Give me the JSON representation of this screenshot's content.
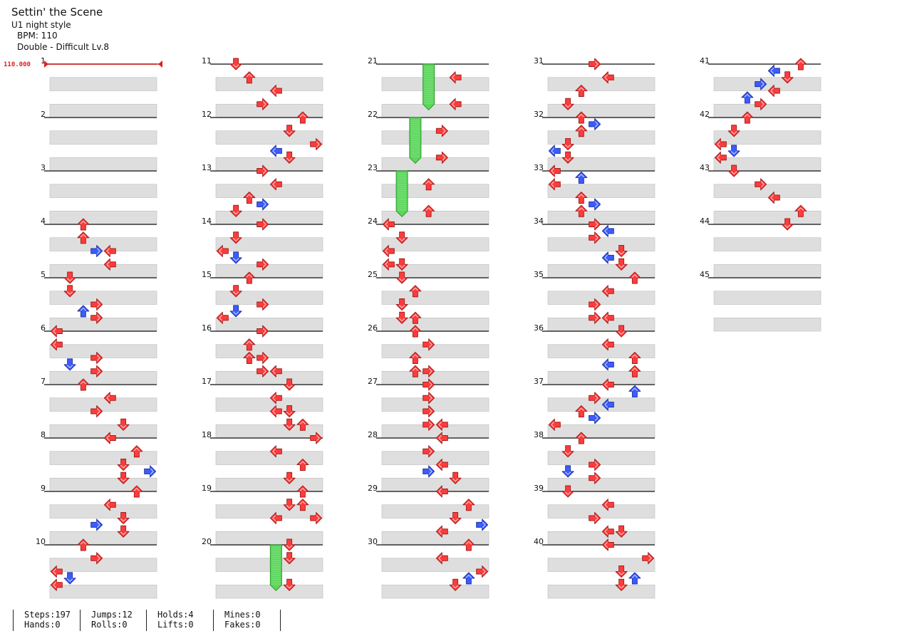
{
  "song": {
    "title": "Settin' the Scene",
    "artist": "U1 night style",
    "bpm_text": "BPM: 110",
    "difficulty_text": "Double - Difficult Lv.8"
  },
  "bpm_change_label": "110.000",
  "colors": {
    "red_arrow": "#ff3b3b",
    "blue_arrow": "#3b5cff",
    "hold_green": "#5cd65c",
    "bpm_marker": "#e02020"
  },
  "measure_numbers": [
    "1",
    "2",
    "3",
    "4",
    "5",
    "6",
    "7",
    "8",
    "9",
    "10",
    "11",
    "12",
    "13",
    "14",
    "15",
    "16",
    "17",
    "18",
    "19",
    "20",
    "21",
    "22",
    "23",
    "24",
    "25",
    "26",
    "27",
    "28",
    "29",
    "30",
    "31",
    "32",
    "33",
    "34",
    "35",
    "36",
    "37",
    "38",
    "39",
    "40",
    "41",
    "42",
    "43",
    "44",
    "45"
  ],
  "notes": [
    {
      "m": 4,
      "r": 0,
      "c": 2,
      "d": "up",
      "col": "red"
    },
    {
      "m": 4,
      "r": 1,
      "c": 2,
      "d": "up",
      "col": "red"
    },
    {
      "m": 4,
      "r": 2,
      "c": 4,
      "d": "left",
      "col": "red"
    },
    {
      "m": 4,
      "r": 2,
      "c": 3,
      "d": "right",
      "col": "blue"
    },
    {
      "m": 4,
      "r": 3,
      "c": 4,
      "d": "left",
      "col": "red"
    },
    {
      "m": 5,
      "r": 0,
      "c": 1,
      "d": "down",
      "col": "red"
    },
    {
      "m": 5,
      "r": 1,
      "c": 1,
      "d": "down",
      "col": "red"
    },
    {
      "m": 5,
      "r": 2,
      "c": 3,
      "d": "right",
      "col": "red"
    },
    {
      "m": 5,
      "r": 2.5,
      "c": 2,
      "d": "up",
      "col": "blue"
    },
    {
      "m": 5,
      "r": 3,
      "c": 3,
      "d": "right",
      "col": "red"
    },
    {
      "m": 6,
      "r": 0,
      "c": 0,
      "d": "left",
      "col": "red"
    },
    {
      "m": 6,
      "r": 1,
      "c": 0,
      "d": "left",
      "col": "red"
    },
    {
      "m": 6,
      "r": 2,
      "c": 3,
      "d": "right",
      "col": "red"
    },
    {
      "m": 6,
      "r": 2.5,
      "c": 1,
      "d": "down",
      "col": "blue"
    },
    {
      "m": 6,
      "r": 3,
      "c": 3,
      "d": "right",
      "col": "red"
    },
    {
      "m": 7,
      "r": 0,
      "c": 2,
      "d": "up",
      "col": "red"
    },
    {
      "m": 7,
      "r": 1,
      "c": 4,
      "d": "left",
      "col": "red"
    },
    {
      "m": 7,
      "r": 2,
      "c": 3,
      "d": "right",
      "col": "red"
    },
    {
      "m": 7,
      "r": 3,
      "c": 5,
      "d": "down",
      "col": "red"
    },
    {
      "m": 8,
      "r": 0,
      "c": 4,
      "d": "left",
      "col": "red"
    },
    {
      "m": 8,
      "r": 1,
      "c": 6,
      "d": "up",
      "col": "red"
    },
    {
      "m": 8,
      "r": 2,
      "c": 5,
      "d": "down",
      "col": "red"
    },
    {
      "m": 8,
      "r": 2.5,
      "c": 7,
      "d": "right",
      "col": "blue"
    },
    {
      "m": 8,
      "r": 3,
      "c": 5,
      "d": "down",
      "col": "red"
    },
    {
      "m": 9,
      "r": 0,
      "c": 6,
      "d": "up",
      "col": "red"
    },
    {
      "m": 9,
      "r": 1,
      "c": 4,
      "d": "left",
      "col": "red"
    },
    {
      "m": 9,
      "r": 2,
      "c": 5,
      "d": "down",
      "col": "red"
    },
    {
      "m": 9,
      "r": 2.5,
      "c": 3,
      "d": "right",
      "col": "blue"
    },
    {
      "m": 9,
      "r": 3,
      "c": 5,
      "d": "down",
      "col": "red"
    },
    {
      "m": 10,
      "r": 0,
      "c": 2,
      "d": "up",
      "col": "red"
    },
    {
      "m": 10,
      "r": 1,
      "c": 3,
      "d": "right",
      "col": "red"
    },
    {
      "m": 10,
      "r": 2,
      "c": 0,
      "d": "left",
      "col": "red"
    },
    {
      "m": 10,
      "r": 2.5,
      "c": 1,
      "d": "down",
      "col": "blue"
    },
    {
      "m": 10,
      "r": 3,
      "c": 0,
      "d": "left",
      "col": "red"
    },
    {
      "m": 11,
      "r": 0,
      "c": 1,
      "d": "down",
      "col": "red"
    },
    {
      "m": 11,
      "r": 1,
      "c": 2,
      "d": "up",
      "col": "red"
    },
    {
      "m": 11,
      "r": 2,
      "c": 4,
      "d": "left",
      "col": "red"
    },
    {
      "m": 11,
      "r": 3,
      "c": 3,
      "d": "right",
      "col": "red"
    },
    {
      "m": 12,
      "r": 0,
      "c": 6,
      "d": "up",
      "col": "red"
    },
    {
      "m": 12,
      "r": 1,
      "c": 5,
      "d": "down",
      "col": "red"
    },
    {
      "m": 12,
      "r": 2,
      "c": 7,
      "d": "right",
      "col": "red"
    },
    {
      "m": 12,
      "r": 2.5,
      "c": 4,
      "d": "left",
      "col": "blue"
    },
    {
      "m": 12,
      "r": 3,
      "c": 5,
      "d": "down",
      "col": "red"
    },
    {
      "m": 13,
      "r": 0,
      "c": 3,
      "d": "right",
      "col": "red"
    },
    {
      "m": 13,
      "r": 1,
      "c": 4,
      "d": "left",
      "col": "red"
    },
    {
      "m": 13,
      "r": 2,
      "c": 2,
      "d": "up",
      "col": "red"
    },
    {
      "m": 13,
      "r": 2.5,
      "c": 3,
      "d": "right",
      "col": "blue"
    },
    {
      "m": 13,
      "r": 3,
      "c": 1,
      "d": "down",
      "col": "red"
    },
    {
      "m": 14,
      "r": 0,
      "c": 3,
      "d": "right",
      "col": "red"
    },
    {
      "m": 14,
      "r": 1,
      "c": 1,
      "d": "down",
      "col": "red"
    },
    {
      "m": 14,
      "r": 2,
      "c": 0,
      "d": "left",
      "col": "red"
    },
    {
      "m": 14,
      "r": 2.5,
      "c": 1,
      "d": "down",
      "col": "blue"
    },
    {
      "m": 14,
      "r": 3,
      "c": 3,
      "d": "right",
      "col": "red"
    },
    {
      "m": 15,
      "r": 0,
      "c": 2,
      "d": "up",
      "col": "red"
    },
    {
      "m": 15,
      "r": 1,
      "c": 1,
      "d": "down",
      "col": "red"
    },
    {
      "m": 15,
      "r": 2,
      "c": 3,
      "d": "right",
      "col": "red"
    },
    {
      "m": 15,
      "r": 2.5,
      "c": 1,
      "d": "down",
      "col": "blue"
    },
    {
      "m": 15,
      "r": 3,
      "c": 0,
      "d": "left",
      "col": "red"
    },
    {
      "m": 16,
      "r": 0,
      "c": 3,
      "d": "right",
      "col": "red"
    },
    {
      "m": 16,
      "r": 1,
      "c": 2,
      "d": "up",
      "col": "red"
    },
    {
      "m": 16,
      "r": 2,
      "c": 2,
      "d": "up",
      "col": "red"
    },
    {
      "m": 16,
      "r": 2,
      "c": 3,
      "d": "right",
      "col": "red"
    },
    {
      "m": 16,
      "r": 3,
      "c": 3,
      "d": "right",
      "col": "red"
    },
    {
      "m": 16,
      "r": 3,
      "c": 4,
      "d": "left",
      "col": "red"
    },
    {
      "m": 17,
      "r": 0,
      "c": 5,
      "d": "down",
      "col": "red"
    },
    {
      "m": 17,
      "r": 1,
      "c": 4,
      "d": "left",
      "col": "red"
    },
    {
      "m": 17,
      "r": 2,
      "c": 4,
      "d": "left",
      "col": "red"
    },
    {
      "m": 17,
      "r": 2,
      "c": 5,
      "d": "down",
      "col": "red"
    },
    {
      "m": 17,
      "r": 3,
      "c": 5,
      "d": "down",
      "col": "red"
    },
    {
      "m": 17,
      "r": 3,
      "c": 6,
      "d": "up",
      "col": "red"
    },
    {
      "m": 18,
      "r": 0,
      "c": 7,
      "d": "right",
      "col": "red"
    },
    {
      "m": 18,
      "r": 1,
      "c": 4,
      "d": "left",
      "col": "red"
    },
    {
      "m": 18,
      "r": 2,
      "c": 6,
      "d": "up",
      "col": "red"
    },
    {
      "m": 18,
      "r": 3,
      "c": 5,
      "d": "down",
      "col": "red"
    },
    {
      "m": 19,
      "r": 0,
      "c": 6,
      "d": "up",
      "col": "red"
    },
    {
      "m": 19,
      "r": 1,
      "c": 5,
      "d": "down",
      "col": "red"
    },
    {
      "m": 19,
      "r": 1,
      "c": 6,
      "d": "up",
      "col": "red"
    },
    {
      "m": 19,
      "r": 2,
      "c": 4,
      "d": "left",
      "col": "red"
    },
    {
      "m": 19,
      "r": 2,
      "c": 7,
      "d": "right",
      "col": "red"
    },
    {
      "m": 20,
      "r": 0,
      "c": 5,
      "d": "down",
      "col": "red"
    },
    {
      "m": 20,
      "r": 1,
      "c": 5,
      "d": "down",
      "col": "red"
    },
    {
      "m": 20,
      "r": 3,
      "c": 5,
      "d": "down",
      "col": "red"
    },
    {
      "m": 21,
      "r": 1,
      "c": 5,
      "d": "left",
      "col": "red"
    },
    {
      "m": 21,
      "r": 3,
      "c": 5,
      "d": "left",
      "col": "red"
    },
    {
      "m": 22,
      "r": 1,
      "c": 4,
      "d": "right",
      "col": "red"
    },
    {
      "m": 22,
      "r": 3,
      "c": 4,
      "d": "right",
      "col": "red"
    },
    {
      "m": 23,
      "r": 1,
      "c": 3,
      "d": "up",
      "col": "red"
    },
    {
      "m": 23,
      "r": 3,
      "c": 3,
      "d": "up",
      "col": "red"
    },
    {
      "m": 24,
      "r": 0,
      "c": 0,
      "d": "left",
      "col": "red"
    },
    {
      "m": 24,
      "r": 1,
      "c": 1,
      "d": "down",
      "col": "red"
    },
    {
      "m": 24,
      "r": 2,
      "c": 0,
      "d": "left",
      "col": "red"
    },
    {
      "m": 24,
      "r": 3,
      "c": 0,
      "d": "left",
      "col": "red"
    },
    {
      "m": 24,
      "r": 3,
      "c": 1,
      "d": "down",
      "col": "red"
    },
    {
      "m": 25,
      "r": 0,
      "c": 1,
      "d": "down",
      "col": "red"
    },
    {
      "m": 25,
      "r": 1,
      "c": 2,
      "d": "up",
      "col": "red"
    },
    {
      "m": 25,
      "r": 2,
      "c": 1,
      "d": "down",
      "col": "red"
    },
    {
      "m": 25,
      "r": 3,
      "c": 1,
      "d": "down",
      "col": "red"
    },
    {
      "m": 25,
      "r": 3,
      "c": 2,
      "d": "up",
      "col": "red"
    },
    {
      "m": 26,
      "r": 0,
      "c": 2,
      "d": "up",
      "col": "red"
    },
    {
      "m": 26,
      "r": 1,
      "c": 3,
      "d": "right",
      "col": "red"
    },
    {
      "m": 26,
      "r": 2,
      "c": 2,
      "d": "up",
      "col": "red"
    },
    {
      "m": 26,
      "r": 3,
      "c": 2,
      "d": "up",
      "col": "red"
    },
    {
      "m": 26,
      "r": 3,
      "c": 3,
      "d": "right",
      "col": "red"
    },
    {
      "m": 27,
      "r": 0,
      "c": 3,
      "d": "right",
      "col": "red"
    },
    {
      "m": 27,
      "r": 1,
      "c": 3,
      "d": "right",
      "col": "red"
    },
    {
      "m": 27,
      "r": 2,
      "c": 3,
      "d": "right",
      "col": "red"
    },
    {
      "m": 27,
      "r": 3,
      "c": 3,
      "d": "right",
      "col": "red"
    },
    {
      "m": 27,
      "r": 3,
      "c": 4,
      "d": "left",
      "col": "red"
    },
    {
      "m": 28,
      "r": 0,
      "c": 4,
      "d": "left",
      "col": "red"
    },
    {
      "m": 28,
      "r": 1,
      "c": 3,
      "d": "right",
      "col": "red"
    },
    {
      "m": 28,
      "r": 2,
      "c": 4,
      "d": "left",
      "col": "red"
    },
    {
      "m": 28,
      "r": 2.5,
      "c": 3,
      "d": "right",
      "col": "blue"
    },
    {
      "m": 28,
      "r": 3,
      "c": 5,
      "d": "down",
      "col": "red"
    },
    {
      "m": 29,
      "r": 0,
      "c": 4,
      "d": "left",
      "col": "red"
    },
    {
      "m": 29,
      "r": 1,
      "c": 6,
      "d": "up",
      "col": "red"
    },
    {
      "m": 29,
      "r": 2,
      "c": 5,
      "d": "down",
      "col": "red"
    },
    {
      "m": 29,
      "r": 2.5,
      "c": 7,
      "d": "right",
      "col": "blue"
    },
    {
      "m": 29,
      "r": 3,
      "c": 4,
      "d": "left",
      "col": "red"
    },
    {
      "m": 30,
      "r": 0,
      "c": 6,
      "d": "up",
      "col": "red"
    },
    {
      "m": 30,
      "r": 1,
      "c": 4,
      "d": "left",
      "col": "red"
    },
    {
      "m": 30,
      "r": 2,
      "c": 7,
      "d": "right",
      "col": "red"
    },
    {
      "m": 30,
      "r": 2.5,
      "c": 6,
      "d": "up",
      "col": "blue"
    },
    {
      "m": 30,
      "r": 3,
      "c": 5,
      "d": "down",
      "col": "red"
    },
    {
      "m": 31,
      "r": 0,
      "c": 3,
      "d": "right",
      "col": "red"
    },
    {
      "m": 31,
      "r": 1,
      "c": 4,
      "d": "left",
      "col": "red"
    },
    {
      "m": 31,
      "r": 2,
      "c": 2,
      "d": "up",
      "col": "red"
    },
    {
      "m": 31,
      "r": 3,
      "c": 1,
      "d": "down",
      "col": "red"
    },
    {
      "m": 32,
      "r": 0,
      "c": 2,
      "d": "up",
      "col": "red"
    },
    {
      "m": 32,
      "r": 0.5,
      "c": 3,
      "d": "right",
      "col": "blue"
    },
    {
      "m": 32,
      "r": 1,
      "c": 2,
      "d": "up",
      "col": "red"
    },
    {
      "m": 32,
      "r": 2,
      "c": 1,
      "d": "down",
      "col": "red"
    },
    {
      "m": 32,
      "r": 2.5,
      "c": 0,
      "d": "left",
      "col": "blue"
    },
    {
      "m": 32,
      "r": 3,
      "c": 1,
      "d": "down",
      "col": "red"
    },
    {
      "m": 33,
      "r": 0,
      "c": 0,
      "d": "left",
      "col": "red"
    },
    {
      "m": 33,
      "r": 0.5,
      "c": 2,
      "d": "up",
      "col": "blue"
    },
    {
      "m": 33,
      "r": 1,
      "c": 0,
      "d": "left",
      "col": "red"
    },
    {
      "m": 33,
      "r": 2,
      "c": 2,
      "d": "up",
      "col": "red"
    },
    {
      "m": 33,
      "r": 2.5,
      "c": 3,
      "d": "right",
      "col": "blue"
    },
    {
      "m": 33,
      "r": 3,
      "c": 2,
      "d": "up",
      "col": "red"
    },
    {
      "m": 34,
      "r": 0,
      "c": 3,
      "d": "right",
      "col": "red"
    },
    {
      "m": 34,
      "r": 0.5,
      "c": 4,
      "d": "left",
      "col": "blue"
    },
    {
      "m": 34,
      "r": 1,
      "c": 3,
      "d": "right",
      "col": "red"
    },
    {
      "m": 34,
      "r": 2,
      "c": 5,
      "d": "down",
      "col": "red"
    },
    {
      "m": 34,
      "r": 2.5,
      "c": 4,
      "d": "left",
      "col": "blue"
    },
    {
      "m": 34,
      "r": 3,
      "c": 5,
      "d": "down",
      "col": "red"
    },
    {
      "m": 35,
      "r": 0,
      "c": 6,
      "d": "up",
      "col": "red"
    },
    {
      "m": 35,
      "r": 1,
      "c": 4,
      "d": "left",
      "col": "red"
    },
    {
      "m": 35,
      "r": 2,
      "c": 3,
      "d": "right",
      "col": "red"
    },
    {
      "m": 35,
      "r": 3,
      "c": 3,
      "d": "right",
      "col": "red"
    },
    {
      "m": 35,
      "r": 3,
      "c": 4,
      "d": "left",
      "col": "red"
    },
    {
      "m": 36,
      "r": 0,
      "c": 5,
      "d": "down",
      "col": "red"
    },
    {
      "m": 36,
      "r": 1,
      "c": 4,
      "d": "left",
      "col": "red"
    },
    {
      "m": 36,
      "r": 2,
      "c": 6,
      "d": "up",
      "col": "red"
    },
    {
      "m": 36,
      "r": 2.5,
      "c": 4,
      "d": "left",
      "col": "blue"
    },
    {
      "m": 36,
      "r": 3,
      "c": 6,
      "d": "up",
      "col": "red"
    },
    {
      "m": 37,
      "r": 0,
      "c": 4,
      "d": "left",
      "col": "red"
    },
    {
      "m": 37,
      "r": 0.5,
      "c": 6,
      "d": "up",
      "col": "blue"
    },
    {
      "m": 37,
      "r": 1,
      "c": 3,
      "d": "right",
      "col": "red"
    },
    {
      "m": 37,
      "r": 1.5,
      "c": 4,
      "d": "left",
      "col": "blue"
    },
    {
      "m": 37,
      "r": 2,
      "c": 2,
      "d": "up",
      "col": "red"
    },
    {
      "m": 37,
      "r": 2.5,
      "c": 3,
      "d": "right",
      "col": "blue"
    },
    {
      "m": 37,
      "r": 3,
      "c": 0,
      "d": "left",
      "col": "red"
    },
    {
      "m": 38,
      "r": 0,
      "c": 2,
      "d": "up",
      "col": "red"
    },
    {
      "m": 38,
      "r": 1,
      "c": 1,
      "d": "down",
      "col": "red"
    },
    {
      "m": 38,
      "r": 2,
      "c": 3,
      "d": "right",
      "col": "red"
    },
    {
      "m": 38,
      "r": 2.5,
      "c": 1,
      "d": "down",
      "col": "blue"
    },
    {
      "m": 38,
      "r": 3,
      "c": 3,
      "d": "right",
      "col": "red"
    },
    {
      "m": 39,
      "r": 0,
      "c": 1,
      "d": "down",
      "col": "red"
    },
    {
      "m": 39,
      "r": 1,
      "c": 4,
      "d": "left",
      "col": "red"
    },
    {
      "m": 39,
      "r": 2,
      "c": 3,
      "d": "right",
      "col": "red"
    },
    {
      "m": 39,
      "r": 3,
      "c": 4,
      "d": "left",
      "col": "red"
    },
    {
      "m": 39,
      "r": 3,
      "c": 5,
      "d": "down",
      "col": "red"
    },
    {
      "m": 40,
      "r": 0,
      "c": 4,
      "d": "left",
      "col": "red"
    },
    {
      "m": 40,
      "r": 1,
      "c": 7,
      "d": "right",
      "col": "red"
    },
    {
      "m": 40,
      "r": 2,
      "c": 5,
      "d": "down",
      "col": "red"
    },
    {
      "m": 40,
      "r": 2.5,
      "c": 6,
      "d": "up",
      "col": "blue"
    },
    {
      "m": 40,
      "r": 3,
      "c": 5,
      "d": "down",
      "col": "red"
    },
    {
      "m": 41,
      "r": 0,
      "c": 6,
      "d": "up",
      "col": "red"
    },
    {
      "m": 41,
      "r": 0.5,
      "c": 4,
      "d": "left",
      "col": "blue"
    },
    {
      "m": 41,
      "r": 1,
      "c": 5,
      "d": "down",
      "col": "red"
    },
    {
      "m": 41,
      "r": 1.5,
      "c": 3,
      "d": "right",
      "col": "blue"
    },
    {
      "m": 41,
      "r": 2,
      "c": 4,
      "d": "left",
      "col": "red"
    },
    {
      "m": 41,
      "r": 2.5,
      "c": 2,
      "d": "up",
      "col": "blue"
    },
    {
      "m": 41,
      "r": 3,
      "c": 3,
      "d": "right",
      "col": "red"
    },
    {
      "m": 42,
      "r": 0,
      "c": 2,
      "d": "up",
      "col": "red"
    },
    {
      "m": 42,
      "r": 1,
      "c": 1,
      "d": "down",
      "col": "red"
    },
    {
      "m": 42,
      "r": 2,
      "c": 0,
      "d": "left",
      "col": "red"
    },
    {
      "m": 42,
      "r": 2.5,
      "c": 1,
      "d": "down",
      "col": "blue"
    },
    {
      "m": 42,
      "r": 3,
      "c": 0,
      "d": "left",
      "col": "red"
    },
    {
      "m": 43,
      "r": 0,
      "c": 1,
      "d": "down",
      "col": "red"
    },
    {
      "m": 43,
      "r": 1,
      "c": 3,
      "d": "right",
      "col": "red"
    },
    {
      "m": 43,
      "r": 2,
      "c": 4,
      "d": "left",
      "col": "red"
    },
    {
      "m": 43,
      "r": 3,
      "c": 6,
      "d": "up",
      "col": "red"
    },
    {
      "m": 44,
      "r": 0,
      "c": 5,
      "d": "down",
      "col": "red"
    }
  ],
  "holds": [
    {
      "m": 20,
      "r": 0,
      "c": 4,
      "len": 3
    },
    {
      "m": 21,
      "r": 0,
      "c": 3,
      "len": 3
    },
    {
      "m": 22,
      "r": 0,
      "c": 2,
      "len": 3
    },
    {
      "m": 23,
      "r": 0,
      "c": 1,
      "len": 3
    }
  ],
  "stats": {
    "steps": "Steps:197",
    "hands": "Hands:0",
    "jumps": "Jumps:12",
    "rolls": "Rolls:0",
    "holds": "Holds:4",
    "lifts": "Lifts:0",
    "mines": "Mines:0",
    "fakes": "Fakes:0"
  }
}
